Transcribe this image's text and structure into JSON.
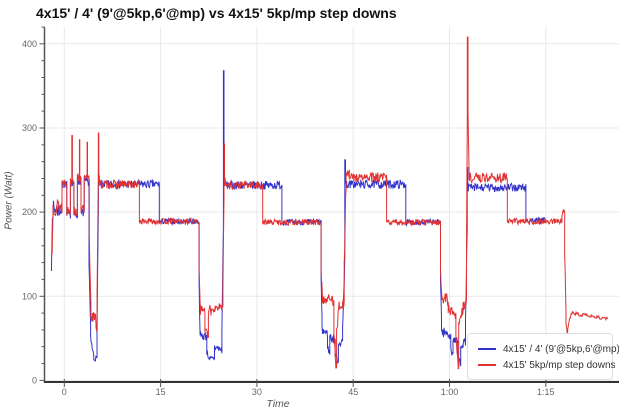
{
  "page": {
    "title": "4x15' / 4' (9'@5kp,6'@mp) vs 4x15' 5kp/mp step downs"
  },
  "chart_data": {
    "type": "line",
    "title": "4x15' / 4' (9'@5kp,6'@mp) vs 4x15' 5kp/mp step downs",
    "xlabel": "Time",
    "ylabel": "Power (Watt)",
    "x_unit": "minutes",
    "x_domain": [
      -3,
      86.4
    ],
    "y_domain": [
      0,
      420
    ],
    "grid": true,
    "legend_position": "bottom-right",
    "x_ticks": [
      {
        "t": 0,
        "label": "0"
      },
      {
        "t": 15,
        "label": "15"
      },
      {
        "t": 30,
        "label": "30"
      },
      {
        "t": 45,
        "label": "45"
      },
      {
        "t": 60,
        "label": "1:00"
      },
      {
        "t": 75,
        "label": "1:15"
      }
    ],
    "y_ticks": [
      {
        "v": 0,
        "label": "0"
      },
      {
        "v": 100,
        "label": "100"
      },
      {
        "v": 200,
        "label": "200"
      },
      {
        "v": 300,
        "label": "300"
      },
      {
        "v": 400,
        "label": "400"
      }
    ],
    "y_minor_step": 20,
    "colors": {
      "grid": "#e9e9e9",
      "axis_x": "#333333",
      "axis_y": "#555555",
      "tick_label": "#666666",
      "title": "#111111"
    },
    "series": [
      {
        "name": "4x15' / 4' (9'@5kp,6'@mp)",
        "color": "#3333cc",
        "seed": 7,
        "segments": [
          [
            -2.0,
            -1.85,
            130,
            192,
            0
          ],
          [
            -1.85,
            -0.35,
            203,
            203,
            11
          ],
          [
            -0.35,
            0.4,
            233,
            233,
            5
          ],
          [
            0.4,
            0.95,
            197,
            197,
            5
          ],
          [
            0.95,
            1.5,
            236,
            236,
            5
          ],
          [
            1.5,
            2.05,
            197,
            197,
            5
          ],
          [
            2.05,
            2.6,
            237,
            237,
            5
          ],
          [
            2.6,
            3.1,
            199,
            199,
            5
          ],
          [
            3.1,
            3.85,
            236,
            236,
            5
          ],
          [
            3.85,
            4.1,
            140,
            60,
            9
          ],
          [
            4.1,
            4.6,
            48,
            28,
            5
          ],
          [
            4.6,
            5.1,
            26,
            26,
            3
          ],
          [
            5.1,
            5.32,
            70,
            200,
            12
          ],
          [
            5.32,
            5.45,
            247,
            238,
            4
          ],
          [
            5.45,
            14.8,
            233,
            233,
            5
          ],
          [
            14.8,
            21.0,
            189,
            189,
            3.5
          ],
          [
            21.0,
            21.15,
            110,
            60,
            7
          ],
          [
            21.15,
            22.2,
            53,
            53,
            6
          ],
          [
            22.2,
            22.75,
            34,
            23,
            4
          ],
          [
            22.75,
            23.4,
            26,
            26,
            3
          ],
          [
            23.4,
            24.55,
            40,
            36,
            5
          ],
          [
            24.55,
            24.78,
            60,
            180,
            10
          ],
          [
            24.78,
            24.88,
            368,
            368,
            0
          ],
          [
            24.88,
            25.1,
            245,
            233,
            4
          ],
          [
            25.1,
            33.9,
            232,
            232,
            5
          ],
          [
            33.9,
            40.0,
            188,
            188,
            3.5
          ],
          [
            40.0,
            40.15,
            120,
            70,
            7
          ],
          [
            40.15,
            41.0,
            60,
            55,
            6
          ],
          [
            41.0,
            41.35,
            40,
            32,
            4
          ],
          [
            41.35,
            42.2,
            52,
            48,
            6
          ],
          [
            42.2,
            42.7,
            30,
            22,
            4
          ],
          [
            42.7,
            43.35,
            45,
            45,
            5
          ],
          [
            43.35,
            43.7,
            60,
            150,
            9
          ],
          [
            43.7,
            43.8,
            262,
            262,
            0
          ],
          [
            43.8,
            53.2,
            233,
            233,
            5
          ],
          [
            53.2,
            58.6,
            188,
            188,
            3.5
          ],
          [
            58.6,
            58.75,
            120,
            75,
            7
          ],
          [
            58.75,
            60.2,
            58,
            54,
            6
          ],
          [
            60.2,
            60.55,
            38,
            28,
            4
          ],
          [
            60.55,
            61.3,
            50,
            45,
            5
          ],
          [
            61.3,
            61.75,
            28,
            20,
            4
          ],
          [
            61.75,
            62.5,
            42,
            46,
            5
          ],
          [
            62.5,
            62.75,
            70,
            175,
            10
          ],
          [
            62.75,
            62.85,
            253,
            253,
            0
          ],
          [
            62.85,
            71.9,
            229,
            229,
            5
          ],
          [
            71.9,
            75.0,
            190,
            190,
            3.5
          ]
        ]
      },
      {
        "name": "4x15' 5kp/mp step downs",
        "color": "#e03232",
        "seed": 13,
        "segments": [
          [
            -1.9,
            -1.75,
            150,
            198,
            0
          ],
          [
            -1.75,
            -0.35,
            207,
            207,
            11
          ],
          [
            -0.35,
            0.4,
            236,
            236,
            5
          ],
          [
            0.4,
            0.95,
            201,
            201,
            6
          ],
          [
            0.95,
            1.18,
            238,
            238,
            5
          ],
          [
            1.18,
            1.26,
            291,
            291,
            0
          ],
          [
            1.26,
            1.5,
            238,
            238,
            5
          ],
          [
            1.5,
            2.05,
            201,
            201,
            6
          ],
          [
            2.05,
            2.35,
            240,
            240,
            5
          ],
          [
            2.35,
            2.42,
            286,
            286,
            0
          ],
          [
            2.42,
            2.6,
            240,
            240,
            5
          ],
          [
            2.6,
            3.1,
            203,
            203,
            6
          ],
          [
            3.1,
            3.55,
            240,
            240,
            5
          ],
          [
            3.55,
            3.62,
            283,
            283,
            0
          ],
          [
            3.62,
            3.9,
            240,
            240,
            5
          ],
          [
            3.9,
            4.15,
            170,
            90,
            9
          ],
          [
            4.15,
            4.95,
            78,
            72,
            7
          ],
          [
            4.95,
            5.12,
            64,
            60,
            4
          ],
          [
            5.12,
            5.3,
            110,
            245,
            12
          ],
          [
            5.3,
            5.38,
            294,
            294,
            0
          ],
          [
            5.38,
            11.7,
            233,
            233,
            5
          ],
          [
            11.7,
            21.0,
            189,
            189,
            3.5
          ],
          [
            21.0,
            21.2,
            130,
            88,
            7
          ],
          [
            21.2,
            21.9,
            84,
            84,
            6
          ],
          [
            21.9,
            22.45,
            60,
            52,
            5
          ],
          [
            22.45,
            23.5,
            82,
            86,
            7
          ],
          [
            23.5,
            24.7,
            88,
            86,
            5
          ],
          [
            24.7,
            24.88,
            120,
            225,
            12
          ],
          [
            24.88,
            24.96,
            281,
            281,
            0
          ],
          [
            24.96,
            30.9,
            232,
            232,
            5
          ],
          [
            30.9,
            40.0,
            188,
            188,
            3.5
          ],
          [
            40.0,
            40.2,
            130,
            100,
            7
          ],
          [
            40.2,
            42.0,
            97,
            95,
            7
          ],
          [
            42.0,
            42.3,
            60,
            18,
            5
          ],
          [
            42.3,
            42.42,
            15,
            15,
            0
          ],
          [
            42.42,
            42.8,
            60,
            88,
            7
          ],
          [
            42.8,
            43.6,
            90,
            90,
            6
          ],
          [
            43.6,
            43.9,
            140,
            232,
            10
          ],
          [
            43.9,
            44.4,
            245,
            245,
            6
          ],
          [
            44.4,
            50.2,
            241,
            241,
            6
          ],
          [
            50.2,
            58.6,
            188,
            188,
            3.5
          ],
          [
            58.6,
            58.8,
            130,
            102,
            7
          ],
          [
            58.8,
            59.8,
            99,
            95,
            7
          ],
          [
            59.8,
            61.0,
            85,
            78,
            6
          ],
          [
            61.0,
            61.35,
            50,
            16,
            5
          ],
          [
            61.35,
            61.44,
            14,
            14,
            0
          ],
          [
            61.44,
            62.1,
            70,
            85,
            6
          ],
          [
            62.1,
            62.65,
            88,
            90,
            6
          ],
          [
            62.65,
            62.78,
            160,
            310,
            0
          ],
          [
            62.78,
            62.88,
            408,
            408,
            0
          ],
          [
            62.88,
            63.05,
            320,
            248,
            0
          ],
          [
            63.05,
            69.0,
            241,
            241,
            6
          ],
          [
            69.0,
            77.5,
            189,
            189,
            3.5
          ],
          [
            77.5,
            77.95,
            197,
            203,
            3
          ],
          [
            77.95,
            78.15,
            150,
            80,
            0
          ],
          [
            78.15,
            78.4,
            68,
            56,
            3
          ],
          [
            78.4,
            79.0,
            62,
            81,
            2
          ],
          [
            79.0,
            84.6,
            80,
            73,
            2
          ]
        ]
      }
    ]
  }
}
